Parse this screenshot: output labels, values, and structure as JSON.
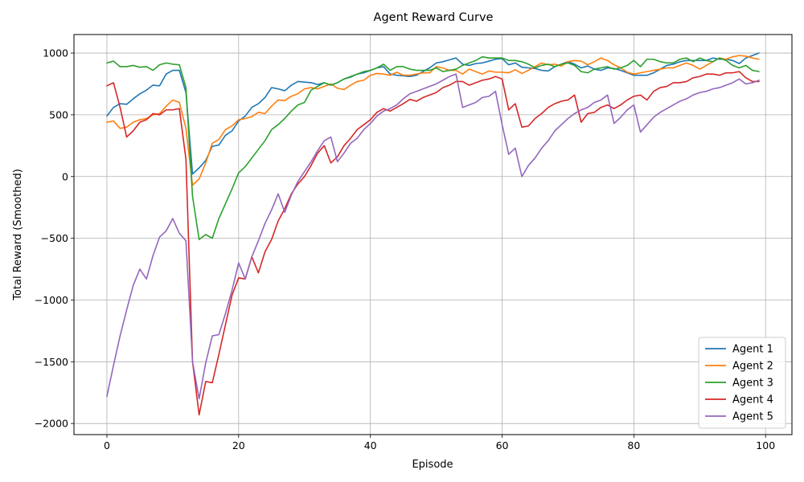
{
  "chart_data": {
    "type": "line",
    "title": "Agent Reward Curve",
    "xlabel": "Episode",
    "ylabel": "Total Reward (Smoothed)",
    "xlim": [
      -5,
      104
    ],
    "ylim": [
      -2090,
      1150
    ],
    "xticks": [
      0,
      20,
      40,
      60,
      80,
      100
    ],
    "yticks": [
      -2000,
      -1500,
      -1000,
      -500,
      0,
      500,
      1000
    ],
    "grid": true,
    "legend_position": "lower-right",
    "series": [
      {
        "name": "Agent 1",
        "color": "#1f77b4",
        "x": [
          0,
          1,
          2,
          3,
          4,
          5,
          6,
          7,
          8,
          9,
          10,
          11,
          12,
          13,
          14,
          15,
          16,
          17,
          18,
          19,
          20,
          21,
          22,
          23,
          24,
          25,
          26,
          27,
          28,
          29,
          30,
          31,
          32,
          33,
          34,
          35,
          36,
          37,
          38,
          39,
          40,
          41,
          42,
          43,
          44,
          45,
          46,
          47,
          48,
          49,
          50,
          51,
          52,
          53,
          54,
          55,
          56,
          57,
          58,
          59,
          60,
          61,
          62,
          63,
          64,
          65,
          66,
          67,
          68,
          69,
          70,
          71,
          72,
          73,
          74,
          75,
          76,
          77,
          78,
          79,
          80,
          81,
          82,
          83,
          84,
          85,
          86,
          87,
          88,
          89,
          90,
          91,
          92,
          93,
          94,
          95,
          96,
          97,
          98,
          99
        ],
        "y": [
          490,
          560,
          590,
          585,
          630,
          670,
          700,
          740,
          735,
          830,
          860,
          860,
          680,
          20,
          70,
          130,
          245,
          255,
          335,
          370,
          450,
          490,
          560,
          590,
          640,
          720,
          710,
          695,
          740,
          770,
          765,
          760,
          745,
          760,
          740,
          760,
          790,
          805,
          830,
          840,
          860,
          880,
          890,
          830,
          820,
          815,
          810,
          820,
          850,
          880,
          920,
          930,
          945,
          960,
          910,
          900,
          915,
          920,
          935,
          950,
          955,
          905,
          920,
          885,
          880,
          875,
          860,
          855,
          890,
          910,
          930,
          910,
          880,
          895,
          870,
          860,
          880,
          875,
          860,
          840,
          820,
          820,
          820,
          840,
          870,
          900,
          910,
          930,
          940,
          940,
          940,
          940,
          960,
          950,
          950,
          940,
          915,
          960,
          980,
          1000
        ]
      },
      {
        "name": "Agent 2",
        "color": "#ff7f0e",
        "x": [
          0,
          1,
          2,
          3,
          4,
          5,
          6,
          7,
          8,
          9,
          10,
          11,
          12,
          13,
          14,
          15,
          16,
          17,
          18,
          19,
          20,
          21,
          22,
          23,
          24,
          25,
          26,
          27,
          28,
          29,
          30,
          31,
          32,
          33,
          34,
          35,
          36,
          37,
          38,
          39,
          40,
          41,
          42,
          43,
          44,
          45,
          46,
          47,
          48,
          49,
          50,
          51,
          52,
          53,
          54,
          55,
          56,
          57,
          58,
          59,
          60,
          61,
          62,
          63,
          64,
          65,
          66,
          67,
          68,
          69,
          70,
          71,
          72,
          73,
          74,
          75,
          76,
          77,
          78,
          79,
          80,
          81,
          82,
          83,
          84,
          85,
          86,
          87,
          88,
          89,
          90,
          91,
          92,
          93,
          94,
          95,
          96,
          97,
          98,
          99
        ],
        "y": [
          440,
          450,
          390,
          400,
          440,
          460,
          470,
          500,
          510,
          570,
          620,
          600,
          390,
          -70,
          -20,
          110,
          270,
          300,
          380,
          410,
          460,
          470,
          485,
          520,
          510,
          570,
          620,
          615,
          650,
          670,
          710,
          720,
          710,
          730,
          750,
          715,
          705,
          740,
          770,
          780,
          820,
          835,
          830,
          820,
          845,
          820,
          820,
          830,
          840,
          840,
          890,
          880,
          860,
          860,
          830,
          870,
          850,
          830,
          855,
          845,
          845,
          840,
          865,
          835,
          860,
          890,
          920,
          905,
          910,
          895,
          930,
          940,
          935,
          905,
          930,
          960,
          940,
          905,
          880,
          845,
          830,
          840,
          850,
          860,
          870,
          880,
          880,
          900,
          920,
          900,
          870,
          900,
          930,
          960,
          950,
          970,
          980,
          975,
          960,
          950
        ]
      },
      {
        "name": "Agent 3",
        "color": "#2ca02c",
        "x": [
          0,
          1,
          2,
          3,
          4,
          5,
          6,
          7,
          8,
          9,
          10,
          11,
          12,
          13,
          14,
          15,
          16,
          17,
          18,
          19,
          20,
          21,
          22,
          23,
          24,
          25,
          26,
          27,
          28,
          29,
          30,
          31,
          32,
          33,
          34,
          35,
          36,
          37,
          38,
          39,
          40,
          41,
          42,
          43,
          44,
          45,
          46,
          47,
          48,
          49,
          50,
          51,
          52,
          53,
          54,
          55,
          56,
          57,
          58,
          59,
          60,
          61,
          62,
          63,
          64,
          65,
          66,
          67,
          68,
          69,
          70,
          71,
          72,
          73,
          74,
          75,
          76,
          77,
          78,
          79,
          80,
          81,
          82,
          83,
          84,
          85,
          86,
          87,
          88,
          89,
          90,
          91,
          92,
          93,
          94,
          95,
          96,
          97,
          98,
          99
        ],
        "y": [
          920,
          935,
          890,
          890,
          900,
          885,
          890,
          860,
          905,
          920,
          910,
          905,
          720,
          -160,
          -510,
          -470,
          -500,
          -340,
          -220,
          -100,
          30,
          80,
          150,
          220,
          290,
          380,
          420,
          470,
          530,
          580,
          600,
          700,
          730,
          760,
          740,
          760,
          790,
          810,
          830,
          850,
          860,
          880,
          910,
          860,
          890,
          890,
          870,
          860,
          860,
          860,
          880,
          850,
          860,
          870,
          900,
          920,
          940,
          970,
          960,
          960,
          960,
          940,
          940,
          930,
          910,
          880,
          900,
          910,
          890,
          910,
          920,
          900,
          850,
          840,
          870,
          880,
          890,
          870,
          880,
          900,
          940,
          890,
          950,
          950,
          930,
          920,
          920,
          950,
          960,
          930,
          960,
          940,
          930,
          960,
          940,
          900,
          880,
          900,
          860,
          850
        ]
      },
      {
        "name": "Agent 4",
        "color": "#d62728",
        "x": [
          0,
          1,
          2,
          3,
          4,
          5,
          6,
          7,
          8,
          9,
          10,
          11,
          12,
          13,
          14,
          15,
          16,
          17,
          18,
          19,
          20,
          21,
          22,
          23,
          24,
          25,
          26,
          27,
          28,
          29,
          30,
          31,
          32,
          33,
          34,
          35,
          36,
          37,
          38,
          39,
          40,
          41,
          42,
          43,
          44,
          45,
          46,
          47,
          48,
          49,
          50,
          51,
          52,
          53,
          54,
          55,
          56,
          57,
          58,
          59,
          60,
          61,
          62,
          63,
          64,
          65,
          66,
          67,
          68,
          69,
          70,
          71,
          72,
          73,
          74,
          75,
          76,
          77,
          78,
          79,
          80,
          81,
          82,
          83,
          84,
          85,
          86,
          87,
          88,
          89,
          90,
          91,
          92,
          93,
          94,
          95,
          96,
          97,
          98,
          99
        ],
        "y": [
          735,
          760,
          560,
          320,
          370,
          440,
          460,
          510,
          500,
          540,
          540,
          550,
          140,
          -1500,
          -1930,
          -1660,
          -1670,
          -1440,
          -1200,
          -960,
          -820,
          -830,
          -650,
          -780,
          -610,
          -510,
          -360,
          -260,
          -140,
          -60,
          0,
          90,
          190,
          250,
          110,
          160,
          250,
          310,
          380,
          420,
          460,
          520,
          550,
          530,
          560,
          590,
          625,
          610,
          640,
          660,
          680,
          720,
          740,
          770,
          770,
          740,
          760,
          780,
          790,
          810,
          790,
          540,
          590,
          400,
          410,
          470,
          510,
          560,
          590,
          610,
          620,
          660,
          440,
          510,
          520,
          560,
          580,
          550,
          580,
          620,
          650,
          660,
          620,
          690,
          720,
          730,
          760,
          760,
          770,
          800,
          810,
          830,
          830,
          820,
          840,
          840,
          850,
          800,
          770,
          770
        ]
      },
      {
        "name": "Agent 5",
        "color": "#9467bd",
        "x": [
          0,
          1,
          2,
          3,
          4,
          5,
          6,
          7,
          8,
          9,
          10,
          11,
          12,
          13,
          14,
          15,
          16,
          17,
          18,
          19,
          20,
          21,
          22,
          23,
          24,
          25,
          26,
          27,
          28,
          29,
          30,
          31,
          32,
          33,
          34,
          35,
          36,
          37,
          38,
          39,
          40,
          41,
          42,
          43,
          44,
          45,
          46,
          47,
          48,
          49,
          50,
          51,
          52,
          53,
          54,
          55,
          56,
          57,
          58,
          59,
          60,
          61,
          62,
          63,
          64,
          65,
          66,
          67,
          68,
          69,
          70,
          71,
          72,
          73,
          74,
          75,
          76,
          77,
          78,
          79,
          80,
          81,
          82,
          83,
          84,
          85,
          86,
          87,
          88,
          89,
          90,
          91,
          92,
          93,
          94,
          95,
          96,
          97,
          98,
          99
        ],
        "y": [
          -1780,
          -1530,
          -1290,
          -1080,
          -880,
          -750,
          -830,
          -640,
          -490,
          -440,
          -340,
          -460,
          -520,
          -1500,
          -1800,
          -1510,
          -1290,
          -1280,
          -1110,
          -920,
          -700,
          -830,
          -650,
          -520,
          -380,
          -270,
          -140,
          -290,
          -150,
          -40,
          40,
          120,
          210,
          290,
          320,
          120,
          190,
          270,
          310,
          380,
          430,
          490,
          530,
          550,
          580,
          630,
          670,
          690,
          710,
          730,
          750,
          780,
          810,
          830,
          560,
          580,
          600,
          640,
          650,
          690,
          420,
          180,
          230,
          0,
          90,
          150,
          230,
          290,
          370,
          420,
          470,
          510,
          540,
          560,
          600,
          620,
          660,
          430,
          480,
          540,
          580,
          360,
          420,
          480,
          520,
          550,
          580,
          610,
          630,
          660,
          680,
          690,
          710,
          720,
          740,
          760,
          790,
          750,
          760,
          780
        ]
      }
    ]
  }
}
